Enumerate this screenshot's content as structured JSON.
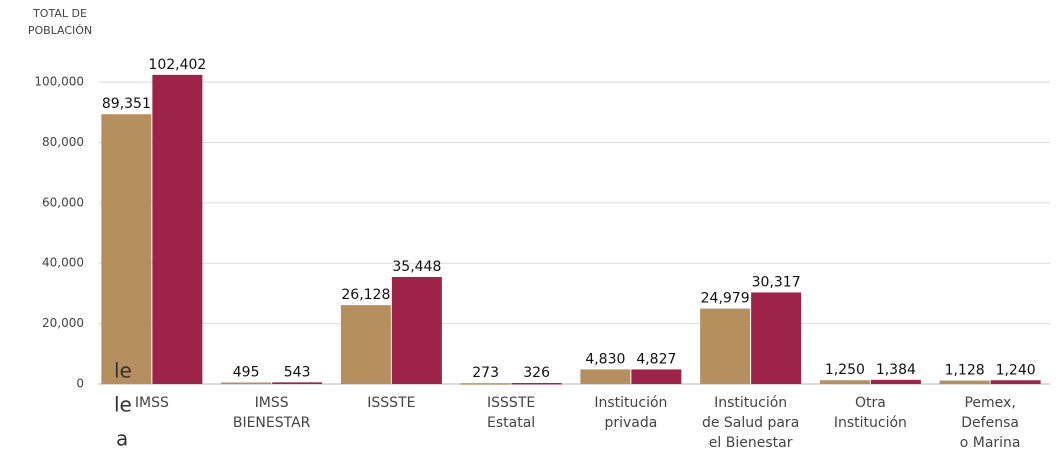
{
  "chart_data": {
    "type": "bar",
    "y_label": [
      "TOTAL DE",
      "POBLACIÓN"
    ],
    "categories": [
      [
        "IMSS"
      ],
      [
        "IMSS",
        "BIENESTAR"
      ],
      [
        "ISSSTE"
      ],
      [
        "ISSSTE",
        "Estatal"
      ],
      [
        "Institución",
        "privada"
      ],
      [
        "Institución",
        "de Salud para",
        "el Bienestar"
      ],
      [
        "Otra",
        "Institución"
      ],
      [
        "Pemex,",
        "Defensa",
        "o Marina"
      ]
    ],
    "series": [
      {
        "color": "#b58f5e",
        "values": [
          89351,
          495,
          26128,
          273,
          4830,
          24979,
          1250,
          1128
        ],
        "value_labels": [
          "89,351",
          "495",
          "26,128",
          "273",
          "4,830",
          "24,979",
          "1,250",
          "1,128"
        ]
      },
      {
        "color": "#9e2349",
        "values": [
          102402,
          543,
          35448,
          326,
          4827,
          30317,
          1384,
          1240
        ],
        "value_labels": [
          "102,402",
          "543",
          "35,448",
          "326",
          "4,827",
          "30,317",
          "1,384",
          "1,240"
        ]
      }
    ],
    "ylim": [
      0,
      105000
    ],
    "yticks": [
      0,
      {
        "value": 20000,
        "label": "20,000"
      },
      {
        "value": 40000,
        "label": "40,000"
      },
      {
        "value": 60000,
        "label": "60,000"
      },
      {
        "value": 80000,
        "label": "80,000"
      },
      {
        "value": 100000,
        "label": "100,000"
      }
    ],
    "grid": true,
    "cropped_text": [
      "le",
      "le",
      "a"
    ]
  }
}
